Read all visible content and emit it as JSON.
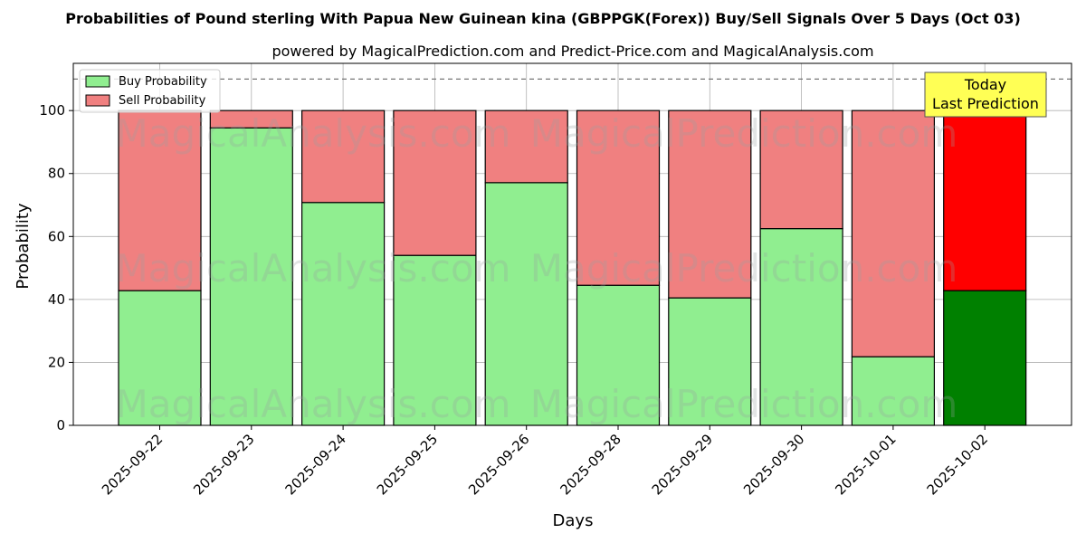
{
  "chart_data": {
    "type": "bar",
    "stacked": true,
    "title": "Probabilities of Pound sterling With Papua New Guinean kina (GBPPGK(Forex)) Buy/Sell Signals Over 5 Days (Oct 03)",
    "subtitle": "powered by MagicalPrediction.com and Predict-Price.com and MagicalAnalysis.com",
    "xlabel": "Days",
    "ylabel": "Probability",
    "ylim": [
      0,
      115
    ],
    "yticks": [
      0,
      20,
      40,
      60,
      80,
      100
    ],
    "reference_line": 110,
    "grid": true,
    "legend_position": "top-left",
    "categories": [
      "2025-09-22",
      "2025-09-23",
      "2025-09-24",
      "2025-09-25",
      "2025-09-26",
      "2025-09-28",
      "2025-09-29",
      "2025-09-30",
      "2025-10-01",
      "2025-10-02"
    ],
    "series": [
      {
        "name": "Buy Probability",
        "color": "#90ee90",
        "highlight_color": "#008000",
        "values": [
          42.8,
          94.5,
          70.8,
          54.0,
          77.1,
          44.5,
          40.5,
          62.5,
          21.8,
          42.8
        ]
      },
      {
        "name": "Sell Probability",
        "color": "#f08080",
        "highlight_color": "#ff0000",
        "values": [
          57.2,
          5.5,
          29.2,
          46.0,
          22.9,
          55.5,
          59.5,
          37.5,
          78.2,
          57.2
        ]
      }
    ],
    "highlight_index": 9,
    "annotation": {
      "line1": "Today",
      "line2": "Last Prediction",
      "color": "#ffff55"
    },
    "watermarks": [
      "MagicalAnalysis.com",
      "MagicalPrediction.com"
    ]
  }
}
